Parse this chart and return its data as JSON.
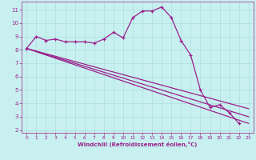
{
  "x": [
    0,
    1,
    2,
    3,
    4,
    5,
    6,
    7,
    8,
    9,
    10,
    11,
    12,
    13,
    14,
    15,
    16,
    17,
    18,
    19,
    20,
    21,
    22,
    23
  ],
  "main_line": [
    8.1,
    9.0,
    8.7,
    8.8,
    8.6,
    8.6,
    8.6,
    8.5,
    8.8,
    9.3,
    8.9,
    10.4,
    10.9,
    10.9,
    11.2,
    10.4,
    8.7,
    7.6,
    5.0,
    3.7,
    3.9,
    3.3,
    2.5,
    null
  ],
  "regression_lines": [
    {
      "x": [
        0,
        23
      ],
      "y": [
        8.1,
        2.5
      ]
    },
    {
      "x": [
        0,
        23
      ],
      "y": [
        8.1,
        3.0
      ]
    },
    {
      "x": [
        0,
        23
      ],
      "y": [
        8.1,
        3.6
      ]
    }
  ],
  "line_color": "#9B1F8B",
  "bg_color": "#C8F0F0",
  "grid_color": "#AADDDD",
  "xlabel": "Windchill (Refroidissement éolien,°C)",
  "ylim": [
    1.8,
    11.6
  ],
  "xlim": [
    -0.5,
    23.5
  ],
  "yticks": [
    2,
    3,
    4,
    5,
    6,
    7,
    8,
    9,
    10,
    11
  ],
  "xticks": [
    0,
    1,
    2,
    3,
    4,
    5,
    6,
    7,
    8,
    9,
    10,
    11,
    12,
    13,
    14,
    15,
    16,
    17,
    18,
    19,
    20,
    21,
    22,
    23
  ]
}
